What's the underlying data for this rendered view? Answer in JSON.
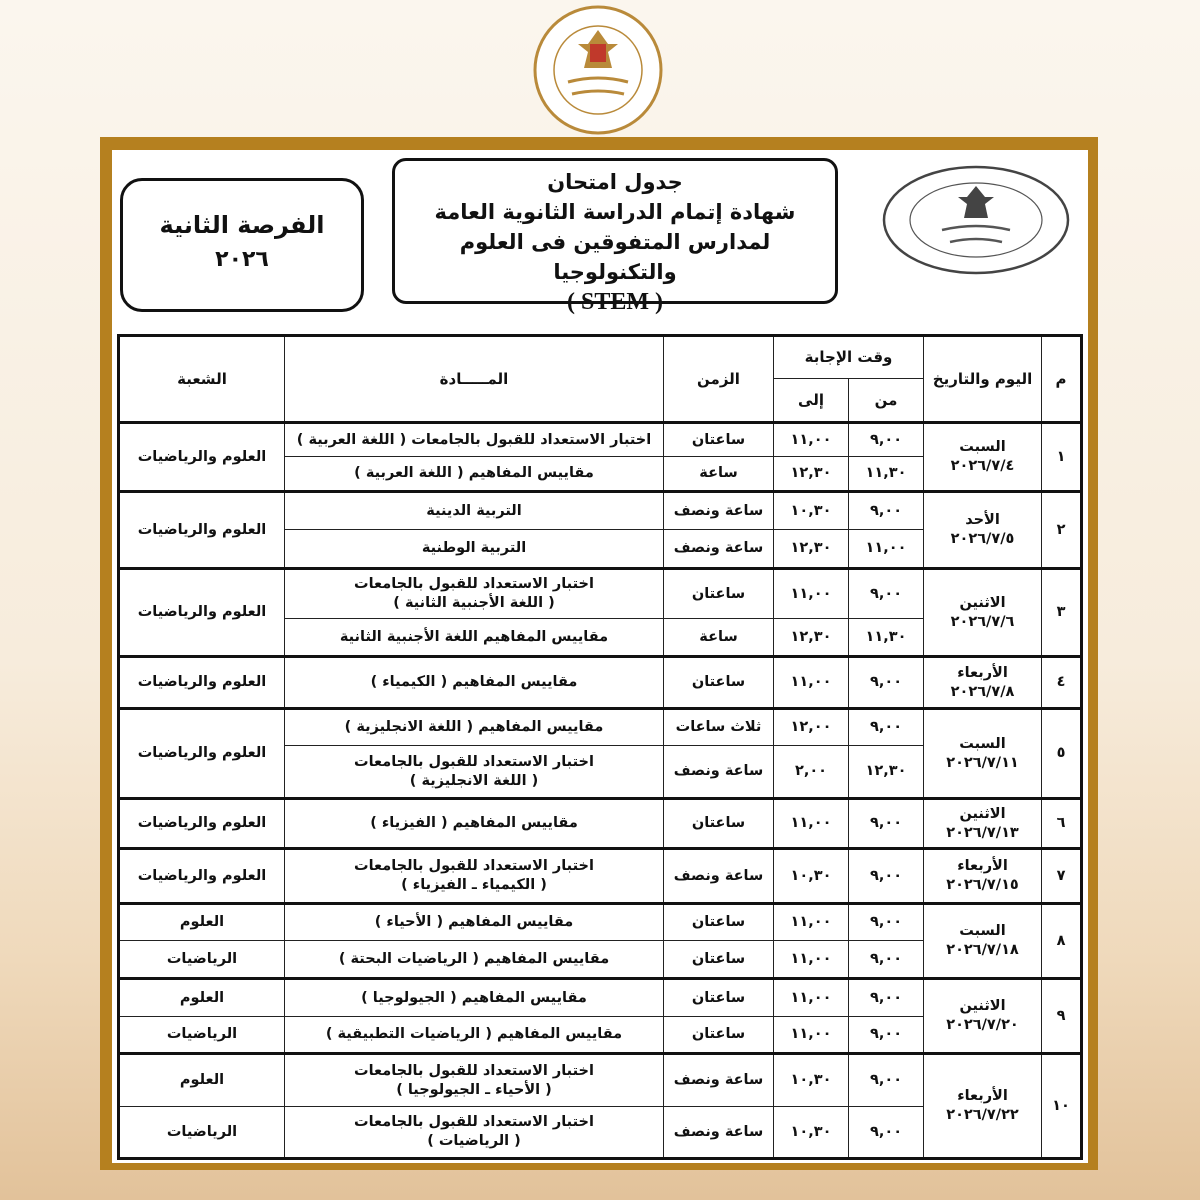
{
  "logo": {
    "text_en": "MINISTRY OF EDUCATION AND TECHNICAL EDUCATION",
    "text_ar": "وزارة التربية والتعليم والتعليم الفني"
  },
  "colors": {
    "frame": "#b5801f",
    "ink": "#111111"
  },
  "header": {
    "chance_line1": "الفرصة الثانية",
    "chance_line2": "٢٠٢٦",
    "title_line1": "جدول امتحان",
    "title_line2": "شهادة إتمام الدراسة الثانوية العامة",
    "title_line3": "لمدارس المتفوقين فى العلوم والتكنولوجيا",
    "title_line4": "( STEM )"
  },
  "table": {
    "headers": {
      "num": "م",
      "day_date": "اليوم والتاريخ",
      "answer_time": "وقت الإجابة",
      "from": "من",
      "to": "إلى",
      "duration": "الزمن",
      "subject": "المـــــادة",
      "branch": "الشعبة"
    },
    "groups": [
      {
        "num": "١",
        "day": "السبت",
        "date": "٢٠٢٦/٧/٤",
        "branch": "العلوم والرياضيات",
        "sessions": [
          {
            "from": "٩,٠٠",
            "to": "١١,٠٠",
            "duration": "ساعتان",
            "subject": [
              "اختبار الاستعداد للقبول بالجامعات ( اللغة العربية )"
            ]
          },
          {
            "from": "١١,٣٠",
            "to": "١٢,٣٠",
            "duration": "ساعة",
            "subject": [
              "مقاييس المفاهيم ( اللغة العربية )"
            ]
          }
        ]
      },
      {
        "num": "٢",
        "day": "الأحد",
        "date": "٢٠٢٦/٧/٥",
        "branch": "العلوم والرياضيات",
        "sessions": [
          {
            "from": "٩,٠٠",
            "to": "١٠,٣٠",
            "duration": "ساعة ونصف",
            "subject": [
              "التربية الدينية"
            ]
          },
          {
            "from": "١١,٠٠",
            "to": "١٢,٣٠",
            "duration": "ساعة ونصف",
            "subject": [
              "التربية الوطنية"
            ]
          }
        ]
      },
      {
        "num": "٣",
        "day": "الاثنين",
        "date": "٢٠٢٦/٧/٦",
        "branch": "العلوم والرياضيات",
        "sessions": [
          {
            "from": "٩,٠٠",
            "to": "١١,٠٠",
            "duration": "ساعتان",
            "subject": [
              "اختبار الاستعداد للقبول بالجامعات",
              "( اللغة الأجنبية الثانية )"
            ]
          },
          {
            "from": "١١,٣٠",
            "to": "١٢,٣٠",
            "duration": "ساعة",
            "subject": [
              "مقاييس المفاهيم اللغة الأجنبية الثانية"
            ]
          }
        ]
      },
      {
        "num": "٤",
        "day": "الأربعاء",
        "date": "٢٠٢٦/٧/٨",
        "branch": "العلوم والرياضيات",
        "sessions": [
          {
            "from": "٩,٠٠",
            "to": "١١,٠٠",
            "duration": "ساعتان",
            "subject": [
              "مقاييس المفاهيم ( الكيمياء )"
            ]
          }
        ]
      },
      {
        "num": "٥",
        "day": "السبت",
        "date": "٢٠٢٦/٧/١١",
        "branch": "العلوم والرياضيات",
        "sessions": [
          {
            "from": "٩,٠٠",
            "to": "١٢,٠٠",
            "duration": "ثلاث ساعات",
            "subject": [
              "مقاييس المفاهيم ( اللغة الانجليزية )"
            ]
          },
          {
            "from": "١٢,٣٠",
            "to": "٢,٠٠",
            "duration": "ساعة ونصف",
            "subject": [
              "اختبار الاستعداد للقبول بالجامعات",
              "( اللغة الانجليزية )"
            ]
          }
        ]
      },
      {
        "num": "٦",
        "day": "الاثنين",
        "date": "٢٠٢٦/٧/١٣",
        "branch": "العلوم والرياضيات",
        "sessions": [
          {
            "from": "٩,٠٠",
            "to": "١١,٠٠",
            "duration": "ساعتان",
            "subject": [
              "مقاييس المفاهيم ( الفيزياء )"
            ]
          }
        ]
      },
      {
        "num": "٧",
        "day": "الأربعاء",
        "date": "٢٠٢٦/٧/١٥",
        "branch": "العلوم والرياضيات",
        "sessions": [
          {
            "from": "٩,٠٠",
            "to": "١٠,٣٠",
            "duration": "ساعة ونصف",
            "subject": [
              "اختبار الاستعداد للقبول بالجامعات",
              "( الكيمياء ـ الفيزياء )"
            ]
          }
        ]
      },
      {
        "num": "٨",
        "day": "السبت",
        "date": "٢٠٢٦/٧/١٨",
        "sessions": [
          {
            "from": "٩,٠٠",
            "to": "١١,٠٠",
            "duration": "ساعتان",
            "subject": [
              "مقاييس المفاهيم ( الأحياء )"
            ],
            "branch": "العلوم"
          },
          {
            "from": "٩,٠٠",
            "to": "١١,٠٠",
            "duration": "ساعتان",
            "subject": [
              "مقاييس المفاهيم ( الرياضيات البحتة )"
            ],
            "branch": "الرياضيات"
          }
        ]
      },
      {
        "num": "٩",
        "day": "الاثنين",
        "date": "٢٠٢٦/٧/٢٠",
        "sessions": [
          {
            "from": "٩,٠٠",
            "to": "١١,٠٠",
            "duration": "ساعتان",
            "subject": [
              "مقاييس المفاهيم ( الجيولوجيا )"
            ],
            "branch": "العلوم"
          },
          {
            "from": "٩,٠٠",
            "to": "١١,٠٠",
            "duration": "ساعتان",
            "subject": [
              "مقاييس المفاهيم ( الرياضيات التطبيقية )"
            ],
            "branch": "الرياضيات"
          }
        ]
      },
      {
        "num": "١٠",
        "day": "الأربعاء",
        "date": "٢٠٢٦/٧/٢٢",
        "sessions": [
          {
            "from": "٩,٠٠",
            "to": "١٠,٣٠",
            "duration": "ساعة ونصف",
            "subject": [
              "اختبار الاستعداد للقبول بالجامعات",
              "( الأحياء ـ الجيولوجيا )"
            ],
            "branch": "العلوم"
          },
          {
            "from": "٩,٠٠",
            "to": "١٠,٣٠",
            "duration": "ساعة ونصف",
            "subject": [
              "اختبار الاستعداد للقبول بالجامعات",
              "( الرياضيات )"
            ],
            "branch": "الرياضيات"
          }
        ]
      }
    ]
  }
}
